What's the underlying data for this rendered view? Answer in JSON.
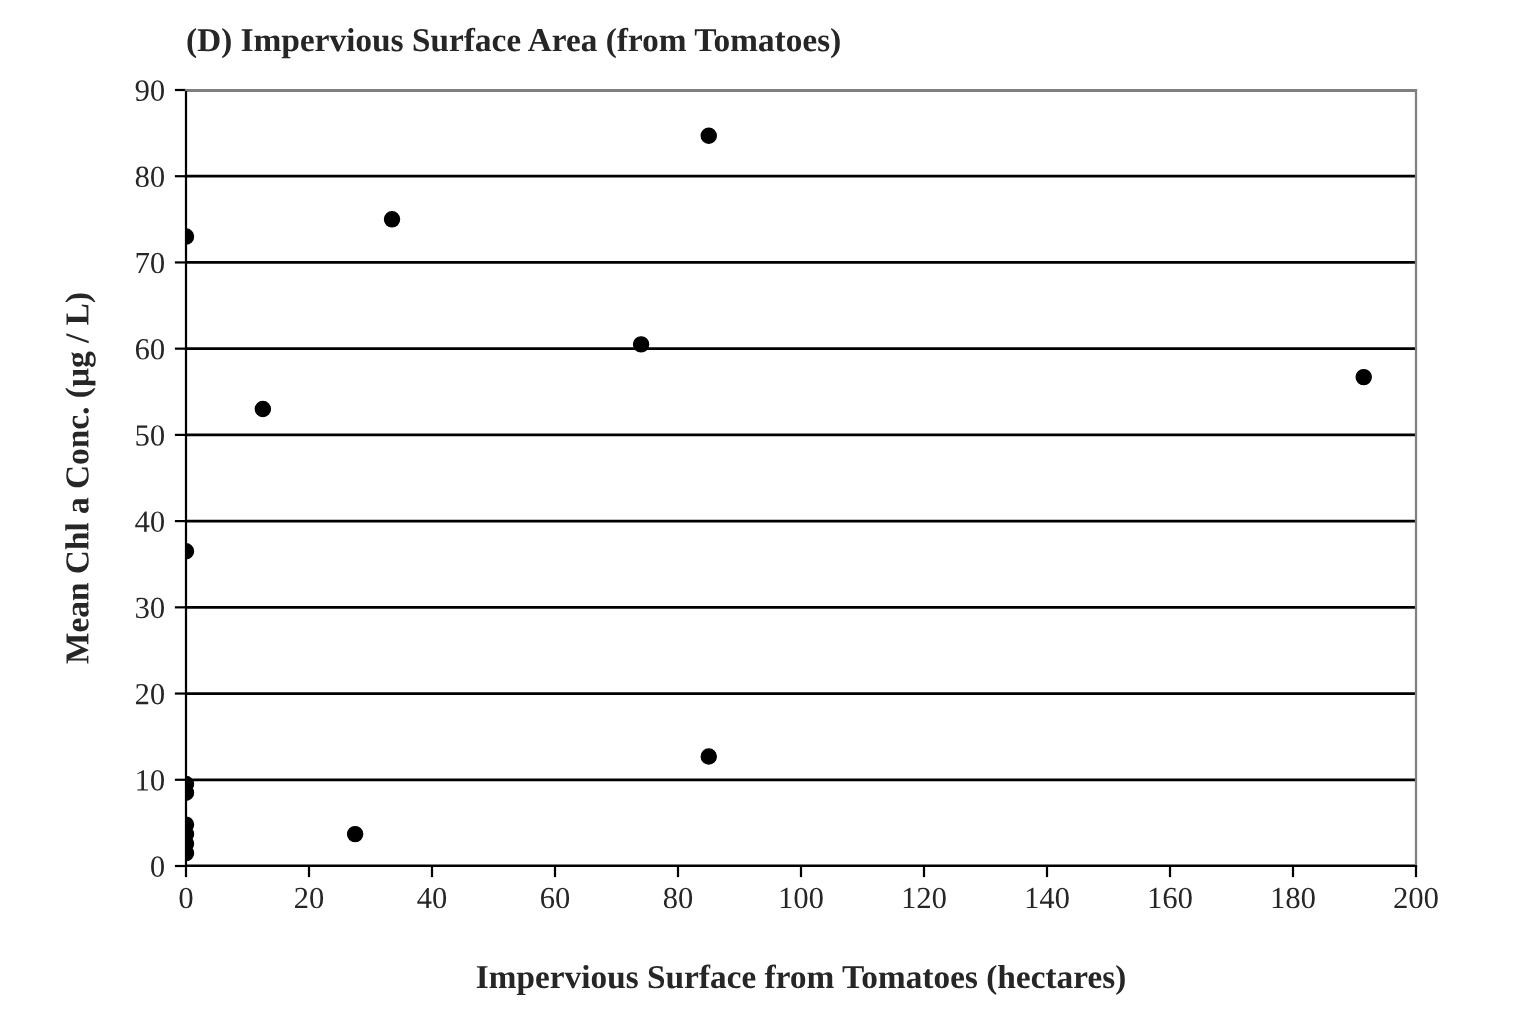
{
  "chart_data": {
    "type": "scatter",
    "title": "(D) Impervious Surface Area (from Tomatoes)",
    "xlabel": "Impervious Surface from Tomatoes (hectares)",
    "ylabel": "Mean Chl a Conc. (µg / L)",
    "x": [
      0,
      0,
      0,
      0,
      0,
      0,
      0,
      0,
      12.5,
      27.5,
      33.5,
      74,
      85,
      85,
      191.5
    ],
    "values": [
      73,
      36.5,
      9.5,
      8.5,
      4.8,
      3.7,
      2.6,
      1.5,
      53,
      3.7,
      75,
      60.5,
      84.7,
      12.7,
      56.7
    ],
    "color": "#000000",
    "marker": "circle",
    "xlim": [
      0,
      200
    ],
    "xticks": [
      0,
      20,
      40,
      60,
      80,
      100,
      120,
      140,
      160,
      180,
      200
    ],
    "ylim": [
      0,
      90
    ],
    "yticks": [
      0,
      10,
      20,
      30,
      40,
      50,
      60,
      70,
      80,
      90
    ],
    "grid": "y",
    "legend": false
  }
}
